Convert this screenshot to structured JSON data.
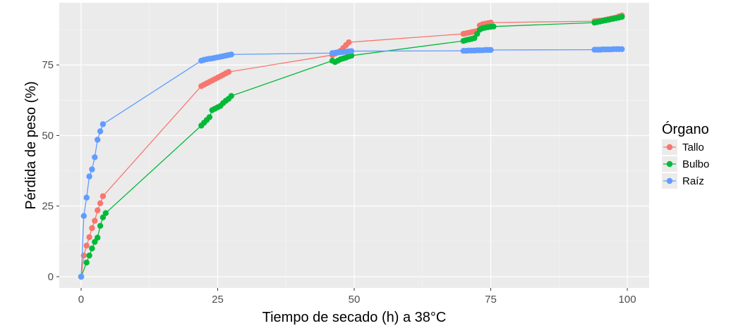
{
  "chart_data": {
    "type": "line",
    "title": "",
    "xlabel": "Tiempo de secado (h) a 38°C",
    "ylabel": "Pérdida de peso (%)",
    "xlim": [
      -4,
      104
    ],
    "ylim": [
      -4,
      97
    ],
    "xticks": [
      0,
      25,
      50,
      75,
      100
    ],
    "yticks": [
      0,
      25,
      50,
      75
    ],
    "grid": true,
    "legend": {
      "title": "Órgano",
      "position": "right"
    },
    "series": [
      {
        "name": "Tallo",
        "color": "#F8766D",
        "points": [
          [
            0,
            0
          ],
          [
            0.5,
            7.5
          ],
          [
            1,
            11
          ],
          [
            1.5,
            14
          ],
          [
            2,
            17.2
          ],
          [
            2.5,
            19.8
          ],
          [
            3,
            23.5
          ],
          [
            3.5,
            26
          ],
          [
            4,
            28.5
          ],
          [
            22,
            67.5
          ],
          [
            22.5,
            68
          ],
          [
            23,
            68.5
          ],
          [
            23.5,
            69
          ],
          [
            24,
            69.5
          ],
          [
            24.5,
            70
          ],
          [
            25,
            70.5
          ],
          [
            25.5,
            71
          ],
          [
            26,
            71.5
          ],
          [
            26.5,
            72
          ],
          [
            27,
            72.5
          ],
          [
            46,
            78.5
          ],
          [
            46.5,
            79
          ],
          [
            47,
            79.5
          ],
          [
            47.5,
            80
          ],
          [
            48,
            81
          ],
          [
            48.5,
            82
          ],
          [
            49,
            83
          ],
          [
            70,
            86
          ],
          [
            70.5,
            86.2
          ],
          [
            71,
            86.4
          ],
          [
            71.5,
            86.6
          ],
          [
            72,
            86.8
          ],
          [
            72.5,
            87
          ],
          [
            73,
            89
          ],
          [
            73.5,
            89.4
          ],
          [
            74,
            89.6
          ],
          [
            74.5,
            89.8
          ],
          [
            75,
            90
          ],
          [
            94,
            90.5
          ],
          [
            94.5,
            90.6
          ],
          [
            95,
            90.7
          ],
          [
            95.5,
            90.8
          ],
          [
            96,
            91
          ],
          [
            96.5,
            91.2
          ],
          [
            97,
            91.4
          ],
          [
            97.5,
            91.6
          ],
          [
            98,
            91.8
          ],
          [
            98.5,
            92.2
          ],
          [
            99,
            92.5
          ]
        ]
      },
      {
        "name": "Bulbo",
        "color": "#00BA38",
        "points": [
          [
            0,
            0
          ],
          [
            1,
            5
          ],
          [
            1.5,
            7.5
          ],
          [
            2,
            10
          ],
          [
            2.5,
            12.3
          ],
          [
            3,
            13.8
          ],
          [
            3.5,
            18
          ],
          [
            4,
            21
          ],
          [
            4.5,
            22.5
          ],
          [
            22,
            53.5
          ],
          [
            22.5,
            54.5
          ],
          [
            23,
            55.5
          ],
          [
            23.5,
            56.5
          ],
          [
            24,
            59
          ],
          [
            24.5,
            59.5
          ],
          [
            25,
            60
          ],
          [
            25.5,
            60.5
          ],
          [
            26,
            61.5
          ],
          [
            26.5,
            62.3
          ],
          [
            27,
            63
          ],
          [
            27.5,
            64
          ],
          [
            46,
            76.5
          ],
          [
            46.5,
            76
          ],
          [
            47,
            76.5
          ],
          [
            47.5,
            77
          ],
          [
            48,
            77.3
          ],
          [
            48.5,
            77.6
          ],
          [
            49,
            78
          ],
          [
            49.5,
            78.3
          ],
          [
            70,
            83.5
          ],
          [
            70.5,
            83.8
          ],
          [
            71,
            84
          ],
          [
            71.5,
            84.2
          ],
          [
            72,
            84.5
          ],
          [
            72.5,
            86
          ],
          [
            73,
            87.5
          ],
          [
            73.5,
            88
          ],
          [
            74,
            88.2
          ],
          [
            74.5,
            88.4
          ],
          [
            75,
            88.5
          ],
          [
            75.5,
            88.6
          ],
          [
            94,
            90
          ],
          [
            94.5,
            90.2
          ],
          [
            95,
            90.4
          ],
          [
            95.5,
            90.6
          ],
          [
            96,
            90.8
          ],
          [
            96.5,
            91
          ],
          [
            97,
            91.2
          ],
          [
            97.5,
            91.4
          ],
          [
            98,
            91.6
          ],
          [
            98.5,
            91.8
          ],
          [
            99,
            92
          ]
        ]
      },
      {
        "name": "Raíz",
        "color": "#619CFF",
        "points": [
          [
            0,
            0
          ],
          [
            0.5,
            21.5
          ],
          [
            1,
            28
          ],
          [
            1.5,
            35.5
          ],
          [
            2,
            38
          ],
          [
            2.5,
            42.3
          ],
          [
            3,
            48.5
          ],
          [
            3.5,
            51.5
          ],
          [
            4,
            54
          ],
          [
            22,
            76.5
          ],
          [
            22.5,
            76.8
          ],
          [
            23,
            77
          ],
          [
            23.5,
            77.2
          ],
          [
            24,
            77.3
          ],
          [
            24.5,
            77.5
          ],
          [
            25,
            77.7
          ],
          [
            25.5,
            77.9
          ],
          [
            26,
            78.1
          ],
          [
            26.5,
            78.3
          ],
          [
            27,
            78.5
          ],
          [
            27.5,
            78.7
          ],
          [
            46,
            79.2
          ],
          [
            46.5,
            79.3
          ],
          [
            47,
            79.4
          ],
          [
            47.5,
            79.5
          ],
          [
            48,
            79.6
          ],
          [
            48.5,
            79.7
          ],
          [
            49,
            79.8
          ],
          [
            49.5,
            79.9
          ],
          [
            70,
            80
          ],
          [
            70.5,
            80
          ],
          [
            71,
            80.1
          ],
          [
            71.5,
            80.1
          ],
          [
            72,
            80.1
          ],
          [
            72.5,
            80.2
          ],
          [
            73,
            80.2
          ],
          [
            73.5,
            80.2
          ],
          [
            74,
            80.3
          ],
          [
            74.5,
            80.3
          ],
          [
            75,
            80.3
          ],
          [
            94,
            80.4
          ],
          [
            94.5,
            80.4
          ],
          [
            95,
            80.4
          ],
          [
            95.5,
            80.5
          ],
          [
            96,
            80.5
          ],
          [
            96.5,
            80.5
          ],
          [
            97,
            80.5
          ],
          [
            97.5,
            80.6
          ],
          [
            98,
            80.6
          ],
          [
            98.5,
            80.6
          ],
          [
            99,
            80.6
          ]
        ]
      }
    ]
  }
}
